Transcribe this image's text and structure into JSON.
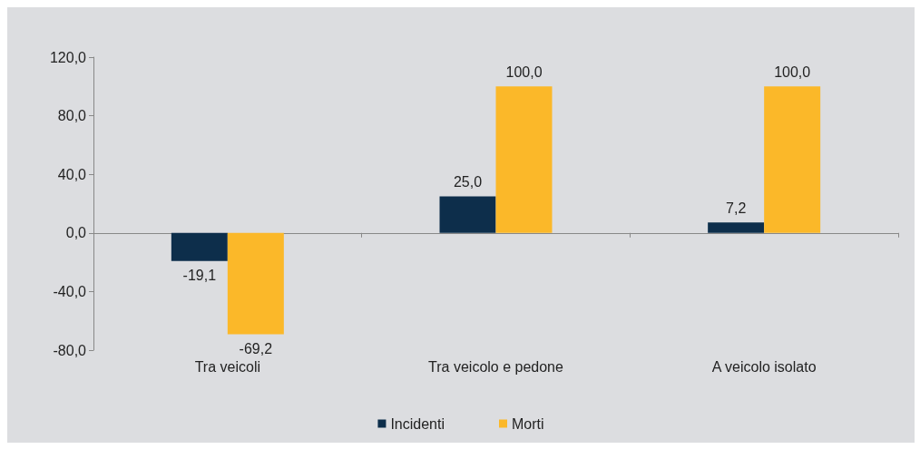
{
  "chart_data": {
    "type": "bar",
    "categories": [
      "Tra veicoli",
      "Tra veicolo e pedone",
      "A veicolo isolato"
    ],
    "series": [
      {
        "name": "Incidenti",
        "color": "#0d2e4b",
        "values": [
          -19.1,
          25.0,
          7.2
        ],
        "value_labels": [
          "-19,1",
          "25,0",
          "7,2"
        ]
      },
      {
        "name": "Morti",
        "color": "#fbb829",
        "values": [
          -69.2,
          100.0,
          100.0
        ],
        "value_labels": [
          "-69,2",
          "100,0",
          "100,0"
        ]
      }
    ],
    "ylim": [
      -80,
      120
    ],
    "yticks": [
      {
        "value": -80,
        "label": "-80,0"
      },
      {
        "value": -40,
        "label": "-40,0"
      },
      {
        "value": 0,
        "label": "0,0"
      },
      {
        "value": 40,
        "label": "40,0"
      },
      {
        "value": 80,
        "label": "80,0"
      },
      {
        "value": 120,
        "label": "120,0"
      }
    ],
    "legend": "bottom"
  }
}
